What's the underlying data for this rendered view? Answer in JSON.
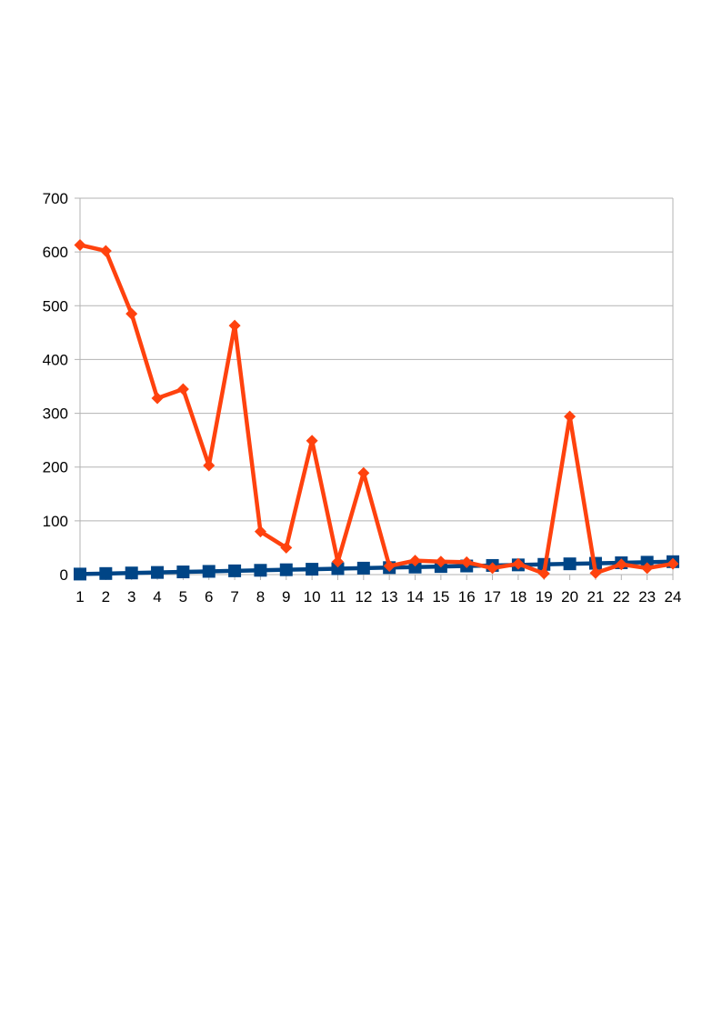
{
  "chart_data": {
    "type": "line",
    "title": "",
    "xlabel": "",
    "ylabel": "",
    "categories": [
      "1",
      "2",
      "3",
      "4",
      "5",
      "6",
      "7",
      "8",
      "9",
      "10",
      "11",
      "12",
      "13",
      "14",
      "15",
      "16",
      "17",
      "18",
      "19",
      "20",
      "21",
      "22",
      "23",
      "24"
    ],
    "ylim": [
      0,
      700
    ],
    "yticks": [
      0,
      100,
      200,
      300,
      400,
      500,
      600,
      700
    ],
    "grid": true,
    "legend": "none",
    "series": [
      {
        "marker": "square",
        "color": "#004586",
        "values": [
          1,
          2,
          3,
          4,
          5,
          6,
          7,
          8,
          9,
          10,
          11,
          12,
          13,
          14,
          15,
          16,
          17,
          18,
          19,
          20,
          21,
          22,
          23,
          24
        ]
      },
      {
        "marker": "diamond",
        "color": "#ff420e",
        "values": [
          613,
          602,
          485,
          328,
          345,
          203,
          463,
          80,
          50,
          249,
          24,
          189,
          16,
          26,
          24,
          23,
          12,
          20,
          2,
          294,
          3,
          19,
          12,
          20
        ]
      }
    ]
  }
}
